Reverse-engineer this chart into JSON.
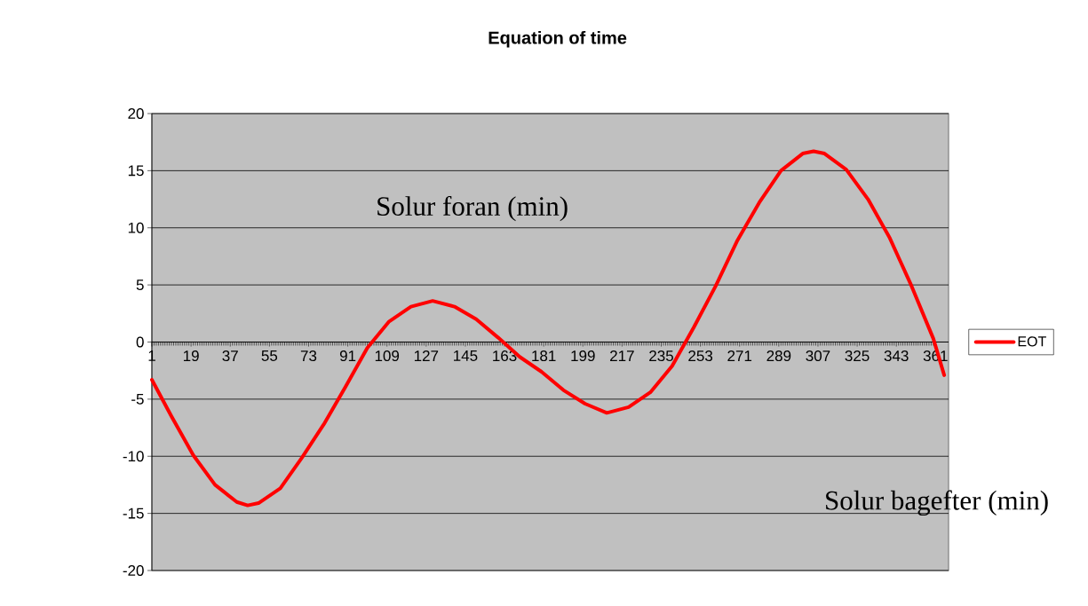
{
  "chart_data": {
    "type": "line",
    "title": "Equation of time",
    "annotations": [
      "Solur foran (min)",
      "Solur bagefter (min)"
    ],
    "xlim": [
      1,
      367
    ],
    "xticks": [
      1,
      19,
      37,
      55,
      73,
      91,
      109,
      127,
      145,
      163,
      181,
      199,
      217,
      235,
      253,
      271,
      289,
      307,
      325,
      343,
      361
    ],
    "ylim": [
      -20,
      20
    ],
    "yticks": [
      -20,
      -15,
      -10,
      -5,
      0,
      5,
      10,
      15,
      20
    ],
    "grid": "y",
    "legend": "right",
    "x": [
      1,
      10,
      20,
      30,
      40,
      45,
      50,
      60,
      70,
      80,
      90,
      100,
      110,
      120,
      130,
      140,
      150,
      160,
      170,
      180,
      190,
      200,
      210,
      220,
      230,
      240,
      250,
      260,
      270,
      280,
      290,
      300,
      305,
      310,
      320,
      330,
      340,
      350,
      360,
      365
    ],
    "series": [
      {
        "name": "EOT",
        "color": "#ff0000",
        "values": [
          -3.3,
          -6.5,
          -9.9,
          -12.5,
          -14.0,
          -14.3,
          -14.1,
          -12.8,
          -10.1,
          -7.2,
          -3.9,
          -0.5,
          1.8,
          3.1,
          3.6,
          3.1,
          2.0,
          0.4,
          -1.3,
          -2.6,
          -4.2,
          -5.4,
          -6.2,
          -5.7,
          -4.4,
          -2.1,
          1.3,
          4.9,
          8.9,
          12.2,
          15.0,
          16.5,
          16.7,
          16.5,
          15.1,
          12.5,
          9.1,
          4.9,
          0.3,
          -2.9
        ]
      }
    ]
  }
}
